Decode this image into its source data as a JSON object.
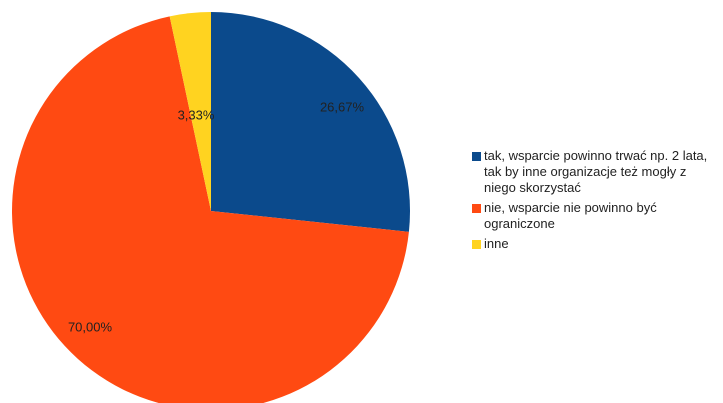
{
  "chart_data": {
    "type": "pie",
    "start_angle_deg": 0,
    "direction": "clockwise",
    "categories": [
      "tak, wsparcie powinno trwać np. 2 lata, tak by inne organizacje też mogły z niego skorzystać",
      "nie, wsparcie nie powinno być ograniczone",
      "inne"
    ],
    "values": [
      26.67,
      70.0,
      3.33
    ],
    "value_labels": [
      "26,67%",
      "70,00%",
      "3,33%"
    ],
    "colors": [
      "#0b4a8c",
      "#ff4a12",
      "#ffd320"
    ],
    "legend_position": "right"
  }
}
